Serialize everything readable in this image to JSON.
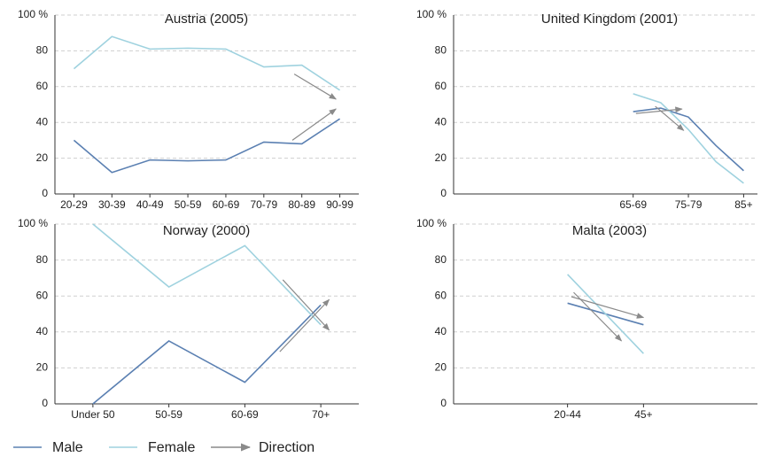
{
  "chart_data": [
    {
      "type": "line",
      "title": "Austria (2005)",
      "categories": [
        "20-29",
        "30-39",
        "40-49",
        "50-59",
        "60-69",
        "70-79",
        "80-89",
        "90-99"
      ],
      "series": [
        {
          "color": "#5b80b2",
          "values": [
            30,
            12,
            19,
            18.5,
            19,
            29,
            28,
            42
          ]
        },
        {
          "color": "#9fd2df",
          "values": [
            70,
            88,
            81,
            81.5,
            81,
            71,
            72,
            58
          ]
        }
      ],
      "arrows": [
        {
          "x": [
            5.8,
            6.9
          ],
          "y": [
            67,
            53
          ]
        },
        {
          "x": [
            5.75,
            6.9
          ],
          "y": [
            30,
            47.5
          ]
        }
      ],
      "ylim": [
        0,
        100
      ],
      "yticks": [
        0,
        20,
        40,
        60,
        80,
        {
          "value": 100,
          "label": "100 %"
        }
      ],
      "grid": true
    },
    {
      "type": "line",
      "title": "United Kingdom (2001)",
      "categories": [
        null,
        null,
        null,
        null,
        null,
        null,
        "65-69",
        null,
        "75-79",
        null,
        "85+"
      ],
      "series": [
        {
          "color": "#5b80b2",
          "values": [
            null,
            null,
            null,
            null,
            null,
            null,
            46,
            48,
            43,
            27,
            13
          ]
        },
        {
          "color": "#9fd2df",
          "values": [
            null,
            null,
            null,
            null,
            null,
            null,
            56,
            51,
            36,
            18,
            6
          ]
        }
      ],
      "arrows": [
        {
          "x": [
            6.1,
            7.77
          ],
          "y": [
            45,
            47.5
          ]
        },
        {
          "x": [
            6.8,
            7.83
          ],
          "y": [
            49,
            35.5
          ]
        }
      ],
      "ylim": [
        0,
        100
      ],
      "yticks": [
        0,
        20,
        40,
        60,
        80,
        {
          "value": 100,
          "label": "100 %"
        }
      ],
      "grid": true
    },
    {
      "type": "line",
      "title": "Norway (2000)",
      "categories": [
        "Under 50",
        "50-59",
        "60-69",
        "70+"
      ],
      "series": [
        {
          "color": "#5b80b2",
          "values": [
            0,
            35,
            12,
            55
          ]
        },
        {
          "color": "#9fd2df",
          "values": [
            100,
            65,
            88,
            44
          ]
        }
      ],
      "arrows": [
        {
          "x": [
            2.5,
            3.11
          ],
          "y": [
            69,
            41
          ]
        },
        {
          "x": [
            2.46,
            3.11
          ],
          "y": [
            29,
            58
          ]
        }
      ],
      "ylim": [
        0,
        100
      ],
      "yticks": [
        0,
        20,
        40,
        60,
        80,
        {
          "value": 100,
          "label": "100 %"
        }
      ],
      "grid": true
    },
    {
      "type": "line",
      "title": "Malta (2003)",
      "categories": [
        null,
        "20-44",
        "45+",
        null
      ],
      "series": [
        {
          "color": "#5b80b2",
          "values": [
            null,
            56,
            44,
            null
          ]
        },
        {
          "color": "#9fd2df",
          "values": [
            null,
            72,
            28,
            null
          ]
        }
      ],
      "arrows": [
        {
          "x": [
            1.08,
            1.71
          ],
          "y": [
            62,
            35
          ]
        },
        {
          "x": [
            1.05,
            2.0
          ],
          "y": [
            59.6,
            48
          ]
        }
      ],
      "ylim": [
        0,
        100
      ],
      "yticks": [
        0,
        20,
        40,
        60,
        80,
        {
          "value": 100,
          "label": "100 %"
        }
      ],
      "grid": true
    }
  ],
  "legend": [
    {
      "name": "Male",
      "color": "#5b80b2"
    },
    {
      "name": "Female",
      "color": "#9fd2df"
    },
    {
      "name": "Direction",
      "color": "#8a8a8a"
    }
  ]
}
